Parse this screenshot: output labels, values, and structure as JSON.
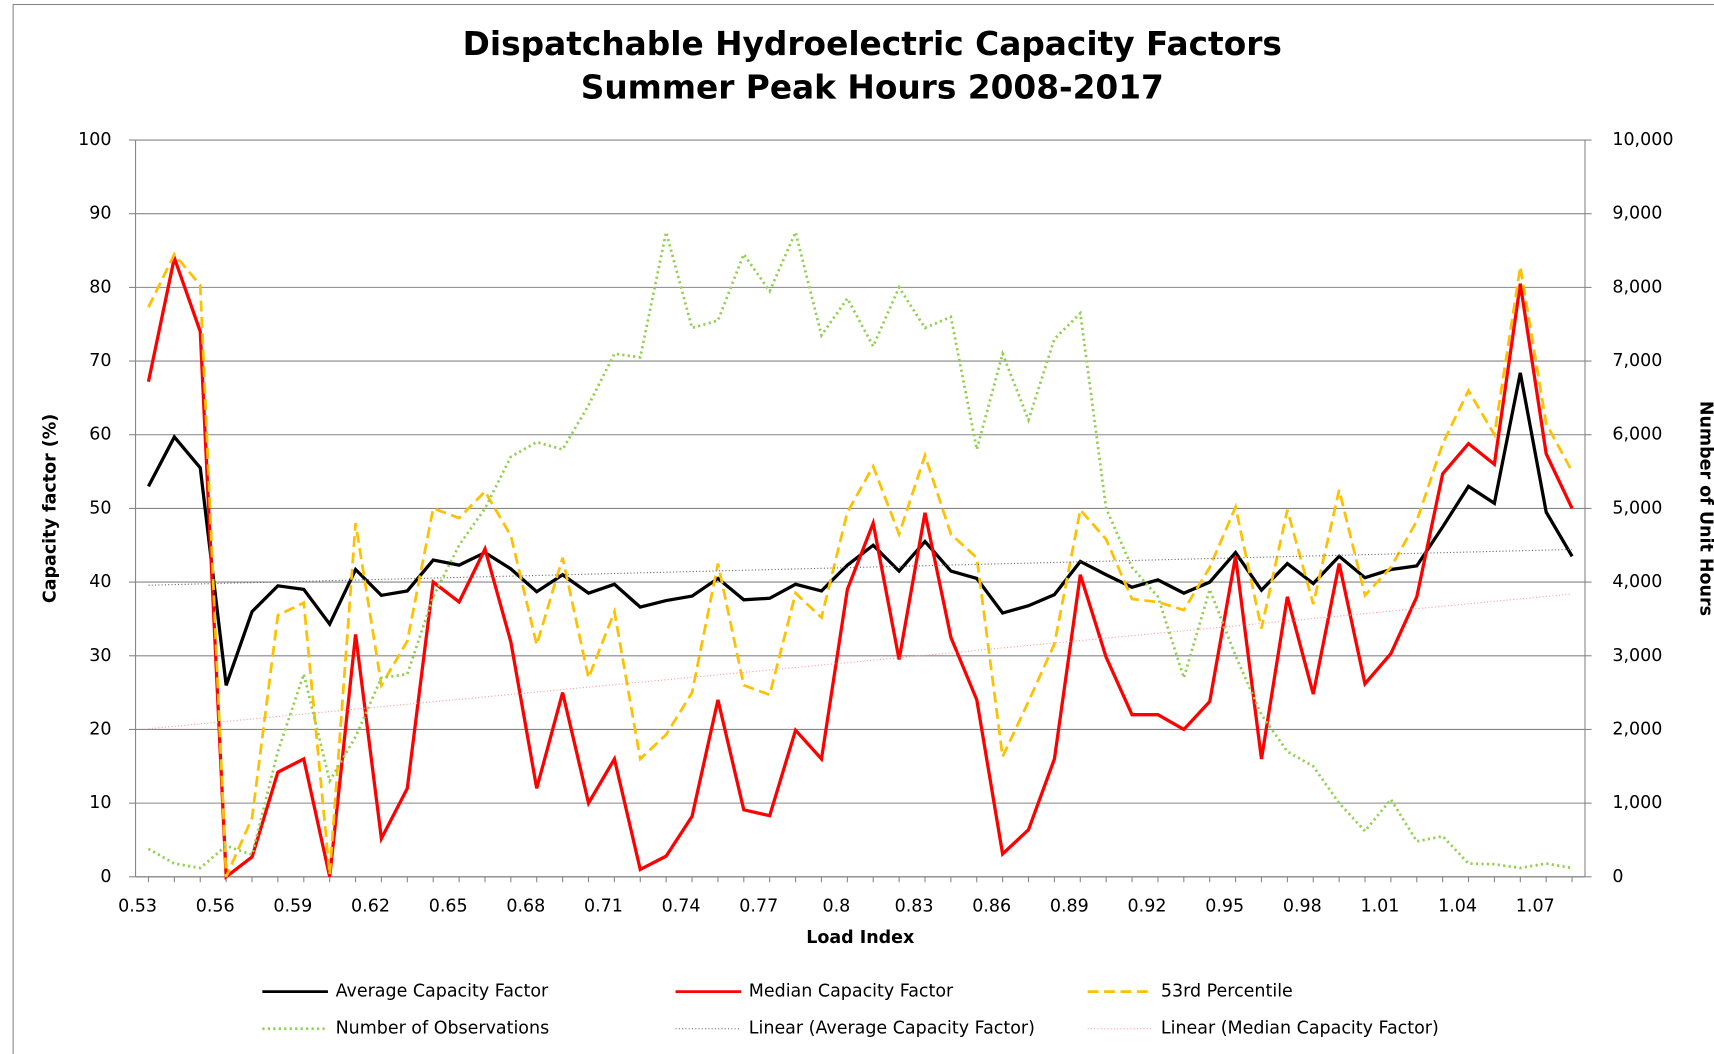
{
  "chart_data": {
    "type": "line",
    "title": "Dispatchable Hydroelectric Capacity Factors",
    "subtitle": "Summer Peak Hours 2008-2017",
    "x_label": "Load Index",
    "y_label": "Capacity factor (%)",
    "y2_label": "Number of Unit Hours",
    "categories": [
      "0.53",
      null,
      null,
      "0.56",
      null,
      null,
      "0.59",
      null,
      null,
      "0.62",
      null,
      null,
      "0.65",
      null,
      null,
      "0.68",
      null,
      null,
      "0.71",
      null,
      null,
      "0.74",
      null,
      null,
      "0.77",
      null,
      null,
      "0.8",
      null,
      null,
      "0.83",
      null,
      null,
      "0.86",
      null,
      null,
      "0.89",
      null,
      null,
      "0.92",
      null,
      null,
      "0.95",
      null,
      null,
      "0.98",
      null,
      null,
      "1.01",
      null,
      null,
      "1.04",
      null,
      null,
      "1.07",
      null
    ],
    "ylim": [
      0,
      100
    ],
    "yticks": [
      0,
      10,
      20,
      30,
      40,
      50,
      60,
      70,
      80,
      90,
      100
    ],
    "y2lim": [
      0,
      10000
    ],
    "y2ticks": [
      0,
      {
        "value": 1000,
        "label": "1,000"
      },
      {
        "value": 2000,
        "label": "2,000"
      },
      {
        "value": 3000,
        "label": "3,000"
      },
      {
        "value": 4000,
        "label": "4,000"
      },
      {
        "value": 5000,
        "label": "5,000"
      },
      {
        "value": 6000,
        "label": "6,000"
      },
      {
        "value": 7000,
        "label": "7,000"
      },
      {
        "value": 8000,
        "label": "8,000"
      },
      {
        "value": 9000,
        "label": "9,000"
      },
      {
        "value": 10000,
        "label": "10,000"
      }
    ],
    "grid": true,
    "legend": "bottom",
    "series": [
      {
        "name": "Average Capacity Factor",
        "color": "#000000",
        "style": "solid",
        "values": [
          53,
          59.7,
          55.5,
          26,
          36,
          39.5,
          39,
          34.3,
          41.7,
          38.2,
          38.8,
          43,
          42.3,
          44,
          41.8,
          38.7,
          41,
          38.5,
          39.7,
          36.6,
          37.5,
          38.1,
          40.5,
          37.6,
          37.8,
          39.7,
          38.8,
          42.3,
          45,
          41.5,
          45.5,
          41.5,
          40.5,
          35.8,
          36.8,
          38.3,
          42.8,
          41,
          39.3,
          40.3,
          38.5,
          40,
          44,
          38.9,
          42.5,
          39.8,
          43.5,
          40.6,
          41.7,
          42.2,
          47.5,
          53,
          50.7,
          68.4,
          49.5,
          43.5
        ],
        "trendline": {
          "name": "Linear (Average Capacity Factor)",
          "color": "#666666"
        }
      },
      {
        "name": "Median Capacity Factor",
        "color": "#ff0000",
        "style": "solid",
        "values": [
          67.2,
          84,
          74,
          0,
          2.7,
          14.2,
          16,
          0,
          32.9,
          5.2,
          12,
          40,
          37.3,
          44.5,
          31.9,
          12,
          25,
          10,
          16,
          1,
          2.8,
          8.2,
          24,
          9.1,
          8.3,
          19.9,
          16,
          39,
          48,
          29.5,
          49.4,
          32.5,
          24,
          3.1,
          6.4,
          16,
          41,
          29.8,
          22,
          22,
          20,
          23.8,
          43.5,
          16,
          38,
          24.8,
          42.5,
          26.2,
          30.3,
          38,
          54.7,
          58.8,
          56,
          80.5,
          57.4,
          50
        ],
        "trendline": {
          "name": "Linear (Median Capacity Factor)",
          "color": "#ff9a9a"
        }
      },
      {
        "name": "53rd Percentile",
        "color": "#ffc000",
        "style": "dashed",
        "values": [
          77.3,
          84.5,
          80.3,
          0,
          8,
          35.5,
          37.2,
          0.3,
          48,
          26,
          32,
          50,
          48.7,
          52.3,
          46.3,
          31.5,
          43.3,
          27,
          36,
          16,
          19.3,
          25,
          42.5,
          26,
          24.7,
          38.5,
          35.2,
          49.5,
          55.7,
          46.5,
          57.2,
          46.5,
          43.3,
          16.3,
          23.8,
          31.6,
          49.8,
          45.8,
          37.7,
          37.3,
          36.2,
          42,
          50.2,
          33.7,
          49.8,
          37,
          52.5,
          38.2,
          42,
          48.3,
          58.8,
          66,
          60,
          82.8,
          61.5,
          55
        ]
      },
      {
        "name": "Number of Observations",
        "color": "#92d050",
        "style": "dotted",
        "axis": "y2",
        "values": [
          380,
          180,
          120,
          420,
          300,
          1700,
          2750,
          1300,
          1900,
          2700,
          2750,
          3800,
          4500,
          5000,
          5700,
          5900,
          5800,
          6400,
          7100,
          7050,
          8750,
          7450,
          7550,
          8450,
          7950,
          8750,
          7350,
          7850,
          7200,
          8000,
          7450,
          7600,
          5800,
          7100,
          6200,
          7300,
          7650,
          5000,
          4200,
          3800,
          2700,
          3900,
          3000,
          2200,
          1700,
          1500,
          1000,
          620,
          1050,
          480,
          550,
          180,
          170,
          120,
          180,
          120
        ]
      }
    ]
  }
}
